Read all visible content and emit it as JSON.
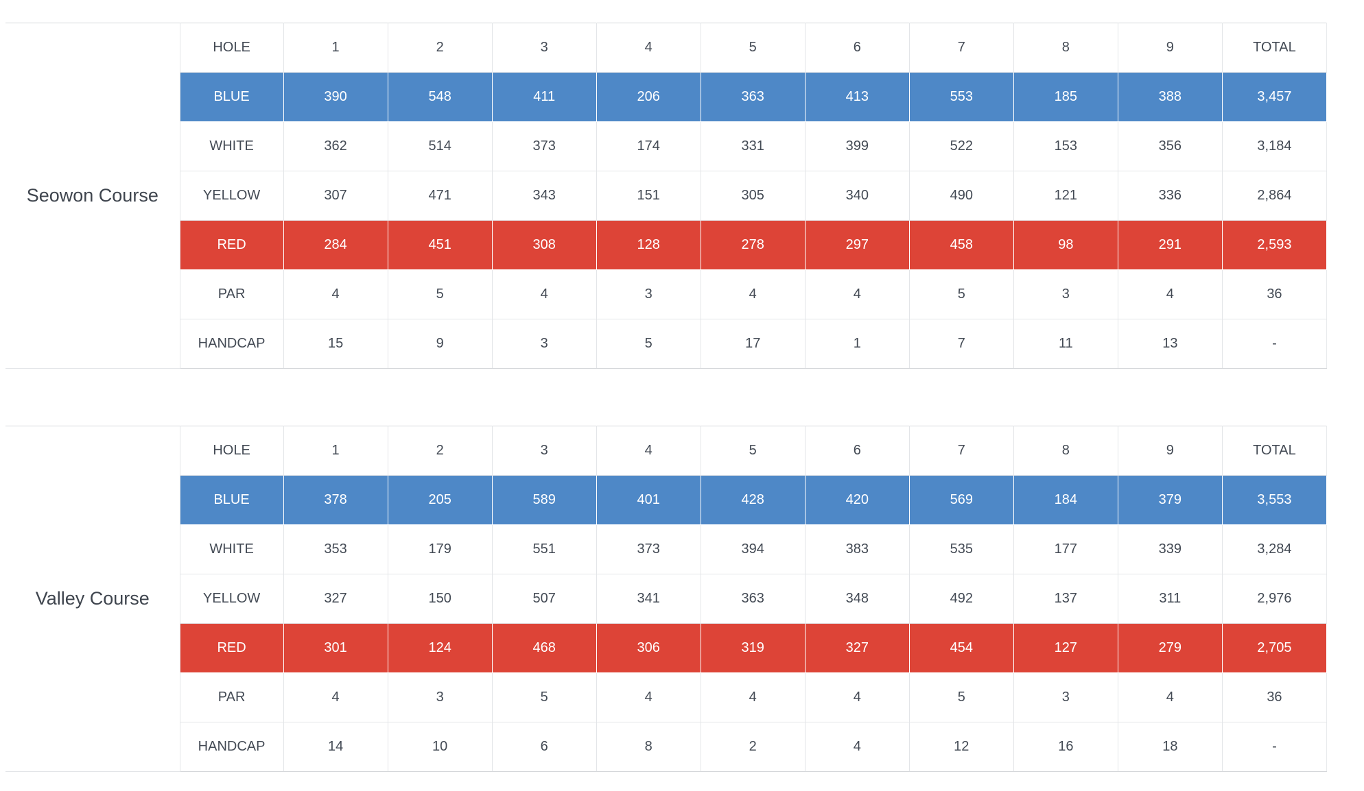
{
  "colors": {
    "tee_blue": "#4e88c7",
    "tee_red": "#dd4437"
  },
  "tables": [
    {
      "course": "Seowon Course",
      "header": [
        "HOLE",
        "1",
        "2",
        "3",
        "4",
        "5",
        "6",
        "7",
        "8",
        "9",
        "TOTAL"
      ],
      "rows": [
        {
          "label": "BLUE",
          "style": "blue",
          "values": [
            "390",
            "548",
            "411",
            "206",
            "363",
            "413",
            "553",
            "185",
            "388",
            "3,457"
          ]
        },
        {
          "label": "WHITE",
          "style": "plain",
          "values": [
            "362",
            "514",
            "373",
            "174",
            "331",
            "399",
            "522",
            "153",
            "356",
            "3,184"
          ]
        },
        {
          "label": "YELLOW",
          "style": "plain",
          "values": [
            "307",
            "471",
            "343",
            "151",
            "305",
            "340",
            "490",
            "121",
            "336",
            "2,864"
          ]
        },
        {
          "label": "RED",
          "style": "red",
          "values": [
            "284",
            "451",
            "308",
            "128",
            "278",
            "297",
            "458",
            "98",
            "291",
            "2,593"
          ]
        },
        {
          "label": "PAR",
          "style": "plain",
          "values": [
            "4",
            "5",
            "4",
            "3",
            "4",
            "4",
            "5",
            "3",
            "4",
            "36"
          ]
        },
        {
          "label": "HANDCAP",
          "style": "plain",
          "values": [
            "15",
            "9",
            "3",
            "5",
            "17",
            "1",
            "7",
            "11",
            "13",
            "-"
          ]
        }
      ]
    },
    {
      "course": "Valley Course",
      "header": [
        "HOLE",
        "1",
        "2",
        "3",
        "4",
        "5",
        "6",
        "7",
        "8",
        "9",
        "TOTAL"
      ],
      "rows": [
        {
          "label": "BLUE",
          "style": "blue",
          "values": [
            "378",
            "205",
            "589",
            "401",
            "428",
            "420",
            "569",
            "184",
            "379",
            "3,553"
          ]
        },
        {
          "label": "WHITE",
          "style": "plain",
          "values": [
            "353",
            "179",
            "551",
            "373",
            "394",
            "383",
            "535",
            "177",
            "339",
            "3,284"
          ]
        },
        {
          "label": "YELLOW",
          "style": "plain",
          "values": [
            "327",
            "150",
            "507",
            "341",
            "363",
            "348",
            "492",
            "137",
            "311",
            "2,976"
          ]
        },
        {
          "label": "RED",
          "style": "red",
          "values": [
            "301",
            "124",
            "468",
            "306",
            "319",
            "327",
            "454",
            "127",
            "279",
            "2,705"
          ]
        },
        {
          "label": "PAR",
          "style": "plain",
          "values": [
            "4",
            "3",
            "5",
            "4",
            "4",
            "4",
            "5",
            "3",
            "4",
            "36"
          ]
        },
        {
          "label": "HANDCAP",
          "style": "plain",
          "values": [
            "14",
            "10",
            "6",
            "8",
            "2",
            "4",
            "12",
            "16",
            "18",
            "-"
          ]
        }
      ]
    }
  ]
}
